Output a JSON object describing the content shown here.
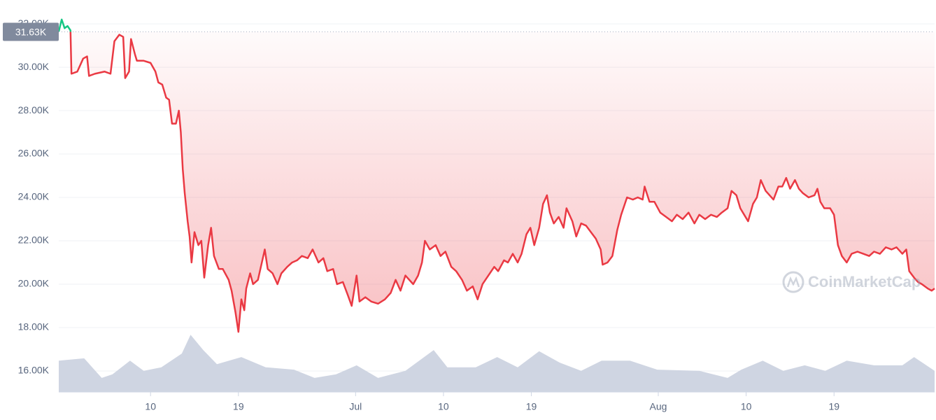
{
  "chart_data": {
    "type": "line",
    "watermark": "CoinMarketCap",
    "reference": {
      "value": 31630,
      "label": "31.63K"
    },
    "up_color": "#16c784",
    "series": [
      {
        "color": "#ea3943",
        "x": [
          -0.4,
          -0.1,
          0.2,
          0.5,
          0.8,
          0.9,
          1.5,
          2.1,
          2.5,
          2.7,
          3.3,
          4.3,
          4.9,
          5.3,
          5.8,
          6.2,
          6.4,
          6.8,
          7.0,
          7.4,
          7.6,
          8.3,
          9.0,
          9.5,
          9.8,
          10.2,
          10.6,
          10.9,
          11.2,
          11.6,
          11.9,
          12.1,
          12.3,
          12.5,
          12.8,
          13.0,
          13.2,
          13.5,
          13.9,
          14.2,
          14.5,
          14.9,
          15.2,
          15.5,
          16.0,
          16.4,
          17.0,
          17.3,
          17.7,
          18.0,
          18.3,
          18.6,
          18.8,
          19.2,
          19.5,
          20.0,
          20.4,
          20.7,
          21.0,
          21.5,
          22.0,
          22.4,
          23.0,
          23.5,
          24.0,
          24.5,
          25.1,
          25.6,
          26.2,
          26.7,
          27.1,
          27.7,
          28.1,
          28.7,
          29.2,
          29.6,
          30.1,
          30.4,
          31.0,
          31.6,
          32.3,
          33.0,
          33.6,
          34.1,
          34.6,
          35.1,
          35.9,
          36.4,
          36.8,
          37.1,
          37.6,
          38.2,
          38.7,
          39.2,
          39.8,
          40.3,
          40.9,
          41.4,
          42.0,
          42.5,
          43.0,
          43.6,
          44.2,
          44.6,
          45.2,
          45.6,
          46.1,
          46.6,
          47.0,
          47.5,
          47.9,
          48.3,
          48.8,
          49.2,
          49.6,
          49.9,
          50.3,
          50.8,
          51.3,
          51.6,
          52.2,
          52.6,
          53.1,
          53.6,
          54.1,
          54.6,
          55.1,
          55.3,
          55.8,
          56.3,
          56.8,
          57.2,
          57.8,
          58.4,
          58.9,
          59.4,
          59.6,
          60.1,
          60.6,
          61.2,
          61.8,
          62.4,
          62.9,
          63.5,
          64.1,
          64.7,
          65.2,
          65.8,
          66.4,
          67.0,
          67.5,
          68.1,
          68.5,
          69.0,
          69.4,
          69.8,
          70.2,
          70.7,
          71.1,
          71.5,
          72.0,
          72.4,
          72.8,
          73.3,
          73.7,
          74.1,
          74.5,
          75.0,
          75.4,
          75.8,
          76.4,
          77.0,
          77.3,
          77.6,
          78.0,
          78.6,
          79.0,
          79.4,
          79.8,
          80.3,
          80.8,
          81.4,
          82.0,
          82.6,
          83.1,
          83.7,
          84.3,
          84.9,
          85.4,
          86.0,
          86.4,
          86.7,
          87.2,
          87.6,
          88.0,
          88.6,
          89.0,
          89.3
        ],
        "values": [
          31650,
          32200,
          31800,
          31900,
          31700,
          29700,
          29800,
          30400,
          30500,
          29600,
          29700,
          29800,
          29700,
          31200,
          31500,
          31400,
          29500,
          29800,
          31300,
          30600,
          30300,
          30300,
          30200,
          29800,
          29300,
          29200,
          28600,
          28500,
          27400,
          27400,
          28000,
          27000,
          25300,
          24200,
          22900,
          22200,
          21000,
          22400,
          21800,
          22000,
          20300,
          21800,
          22600,
          21300,
          20700,
          20700,
          20200,
          19700,
          18700,
          17800,
          19300,
          18800,
          19800,
          20500,
          20000,
          20200,
          21000,
          21600,
          20700,
          20500,
          20000,
          20500,
          20800,
          21000,
          21100,
          21300,
          21200,
          21600,
          21000,
          21200,
          20600,
          20700,
          20000,
          20100,
          19500,
          19000,
          20400,
          19200,
          19400,
          19200,
          19100,
          19300,
          19600,
          20200,
          19700,
          20400,
          20000,
          20400,
          21000,
          22000,
          21600,
          21800,
          21300,
          21500,
          20800,
          20600,
          20200,
          19700,
          19900,
          19300,
          20000,
          20400,
          20800,
          20600,
          21100,
          21000,
          21400,
          21000,
          21400,
          22300,
          22600,
          21800,
          22600,
          23700,
          24100,
          23300,
          22800,
          23100,
          22600,
          23500,
          22900,
          22200,
          22800,
          22700,
          22400,
          22100,
          21600,
          20900,
          21000,
          21300,
          22500,
          23200,
          24000,
          23900,
          24000,
          23900,
          24500,
          23800,
          23800,
          23300,
          23100,
          22900,
          23200,
          23000,
          23300,
          22800,
          23200,
          23000,
          23200,
          23100,
          23300,
          23500,
          24300,
          24100,
          23500,
          23200,
          22900,
          23700,
          24000,
          24800,
          24300,
          24100,
          23900,
          24500,
          24500,
          24900,
          24400,
          24800,
          24400,
          24200,
          24000,
          24100,
          24400,
          23800,
          23500,
          23500,
          23200,
          21800,
          21300,
          21000,
          21400,
          21500,
          21400,
          21300,
          21500,
          21400,
          21700,
          21600,
          21700,
          21400,
          21600,
          20600,
          20300,
          20100,
          20000,
          19800,
          19700,
          19800
        ]
      },
      {
        "color": "#cfd5e2",
        "axis": "y2",
        "x": [
          -0.4,
          2.2,
          4.0,
          5.1,
          6.9,
          8.3,
          10.1,
          12.2,
          13.1,
          14.4,
          15.8,
          18.3,
          20.8,
          23.7,
          25.8,
          28.0,
          30.1,
          32.3,
          35.1,
          38.0,
          39.4,
          42.3,
          44.5,
          46.6,
          48.8,
          50.9,
          53.1,
          55.2,
          58.1,
          60.9,
          65.2,
          68.1,
          69.5,
          71.7,
          73.8,
          76.0,
          78.1,
          80.3,
          83.1,
          86.0,
          87.2,
          89.3
        ],
        "values": [
          8.0,
          8.6,
          3.6,
          4.5,
          8.0,
          5.4,
          6.3,
          9.8,
          14.6,
          10.7,
          7.1,
          8.9,
          6.3,
          5.7,
          3.6,
          4.5,
          6.8,
          3.6,
          5.4,
          10.7,
          6.3,
          6.3,
          8.9,
          6.3,
          10.4,
          7.5,
          5.4,
          8.0,
          8.0,
          5.7,
          5.4,
          3.6,
          5.7,
          8.0,
          5.4,
          6.8,
          5.4,
          8.0,
          6.8,
          6.8,
          8.9,
          5.4
        ]
      }
    ],
    "xlim": [
      -0.4,
      89.3
    ],
    "xticks": [
      {
        "value": 9,
        "label": "10"
      },
      {
        "value": 18,
        "label": "19"
      },
      {
        "value": 30,
        "label": "Jul"
      },
      {
        "value": 39,
        "label": "10"
      },
      {
        "value": 48,
        "label": "19"
      },
      {
        "value": 61,
        "label": "Aug"
      },
      {
        "value": 70,
        "label": "10"
      },
      {
        "value": 79,
        "label": "19"
      }
    ],
    "ylim": [
      15030,
      33100
    ],
    "yticks": [
      {
        "value": 16000,
        "label": "16.00K"
      },
      {
        "value": 18000,
        "label": "18.00K"
      },
      {
        "value": 20000,
        "label": "20.00K"
      },
      {
        "value": 22000,
        "label": "22.00K"
      },
      {
        "value": 24000,
        "label": "24.00K"
      },
      {
        "value": 26000,
        "label": "26.00K"
      },
      {
        "value": 28000,
        "label": "28.00K"
      },
      {
        "value": 30000,
        "label": "30.00K"
      },
      {
        "value": 32000,
        "label": "32.00K"
      }
    ],
    "y2lim": [
      0,
      100
    ],
    "grid": true
  }
}
